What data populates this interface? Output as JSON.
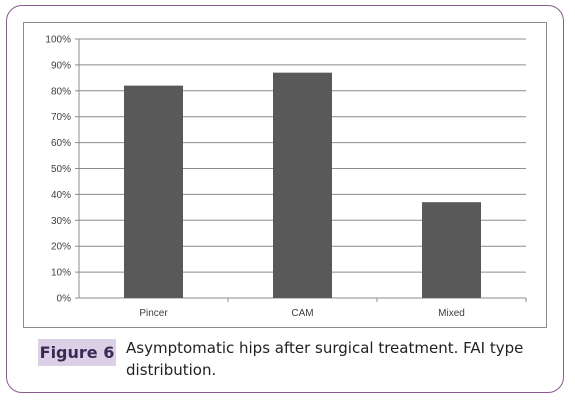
{
  "figure": {
    "label": "Figure 6",
    "caption": "Asymptomatic hips after surgical treatment. FAI type distribution."
  },
  "chart_data": {
    "type": "bar",
    "categories": [
      "Pincer",
      "CAM",
      "Mixed"
    ],
    "values": [
      82,
      87,
      37
    ],
    "ylim": [
      0,
      100
    ],
    "yticks": [
      0,
      10,
      20,
      30,
      40,
      50,
      60,
      70,
      80,
      90,
      100
    ],
    "ytick_labels": [
      "0%",
      "10%",
      "20%",
      "30%",
      "40%",
      "50%",
      "60%",
      "70%",
      "80%",
      "90%",
      "100%"
    ],
    "title": "",
    "xlabel": "",
    "ylabel": "",
    "grid": "horizontal",
    "legend": "none",
    "bar_color": "#595959",
    "grid_color": "#8c8c8c"
  }
}
